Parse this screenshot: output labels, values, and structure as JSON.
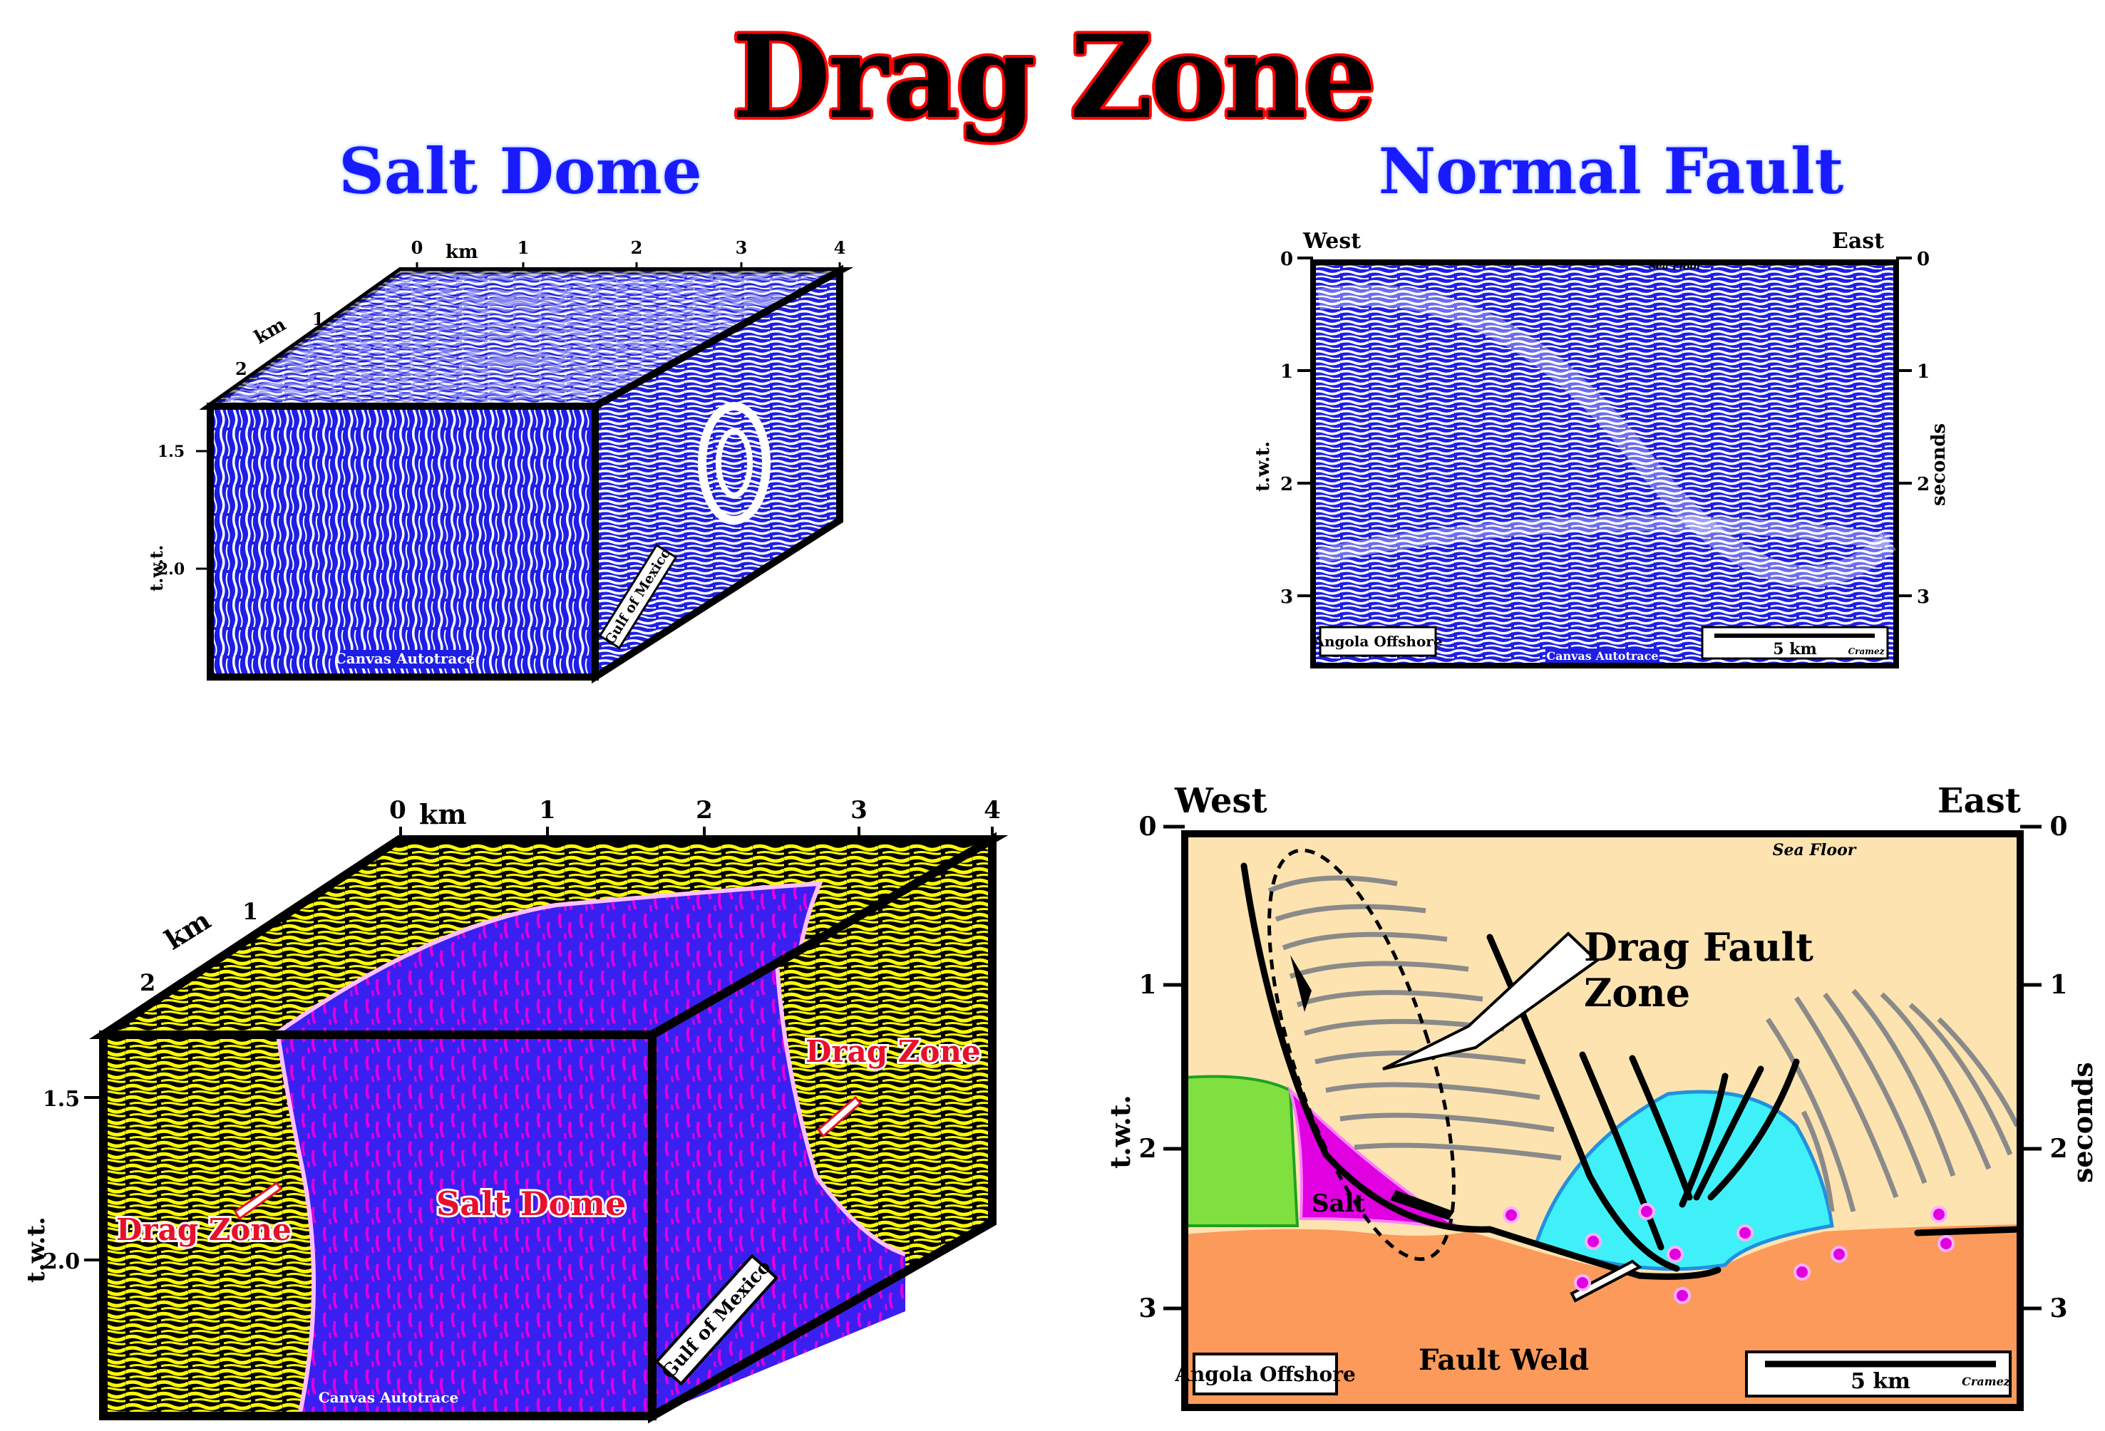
{
  "title": "Drag Zone",
  "panels": {
    "salt_dome_header": "Salt Dome",
    "normal_fault_header": "Normal Fault"
  },
  "salt_top": {
    "km_label": "km",
    "top_ticks": [
      "0",
      "1",
      "2",
      "3",
      "4"
    ],
    "side_ticks": [
      "1",
      "2"
    ],
    "side_km": "km",
    "depth_ticks": [
      "1.5",
      "2.0"
    ],
    "twt": "t.w.t.",
    "location": "Gulf of Mexico",
    "credit": "Canvas Autotrace"
  },
  "fault_top": {
    "west": "West",
    "east": "East",
    "left_ticks": [
      "0",
      "1",
      "2",
      "3"
    ],
    "right_ticks": [
      "0",
      "1",
      "2",
      "3"
    ],
    "twt": "t.w.t.",
    "seconds": "seconds",
    "sea_floor": "Sea Floor",
    "location": "Angola Offshore",
    "scale": "5 km",
    "author": "Cramez",
    "credit": "Canvas Autotrace"
  },
  "salt_bottom": {
    "km_label": "km",
    "top_ticks": [
      "0",
      "1",
      "2",
      "3",
      "4"
    ],
    "side_ticks": [
      "1",
      "2"
    ],
    "side_km": "km",
    "depth_ticks": [
      "1.5",
      "2.0"
    ],
    "twt": "t.w.t.",
    "drag_zone_left": "Drag Zone",
    "drag_zone_right": "Drag Zone",
    "salt_dome": "Salt Dome",
    "location": "Gulf of Mexico",
    "credit": "Canvas Autotrace"
  },
  "fault_bottom": {
    "west": "West",
    "east": "East",
    "left_ticks": [
      "0",
      "1",
      "2",
      "3"
    ],
    "right_ticks": [
      "0",
      "1",
      "2",
      "3"
    ],
    "twt": "t.w.t.",
    "seconds": "seconds",
    "sea_floor": "Sea Floor",
    "drag_fault_line1": "Drag Fault",
    "drag_fault_line2": "Zone",
    "salt": "Salt",
    "fault_weld": "Fault Weld",
    "location": "Angola Offshore",
    "scale": "5 km",
    "author": "Cramez"
  },
  "colors": {
    "title_outline": "#ff0000",
    "header_blue": "#1a1aff",
    "seismic_blue": "#1e1ee6",
    "yellow": "#ffff00",
    "magenta": "#e000e0",
    "salt_blue": "#3020f0",
    "sand": "#fde3b0",
    "orange": "#fb9a5a",
    "cyan": "#40f0f8",
    "green": "#7fe040",
    "label_red": "#e8102a"
  }
}
